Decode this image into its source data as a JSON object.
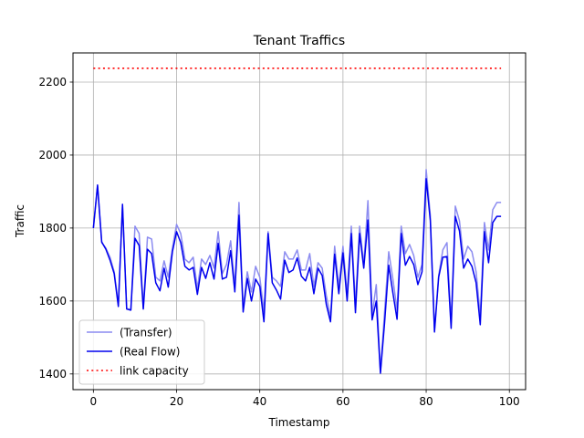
{
  "chart_data": {
    "type": "line",
    "title": "Tenant Traffics",
    "xlabel": "Timestamp",
    "ylabel": "Traffic",
    "xlim": [
      -4.9,
      103.9
    ],
    "ylim": [
      1357,
      2280
    ],
    "xticks": [
      0,
      20,
      40,
      60,
      80,
      100
    ],
    "yticks": [
      1400,
      1600,
      1800,
      2000,
      2200
    ],
    "grid": true,
    "legend_position": "lower-left",
    "series": [
      {
        "name": "(Transfer)",
        "color": "#8c8cf0",
        "style": "solid",
        "x": [
          0,
          1,
          2,
          3,
          4,
          5,
          6,
          7,
          8,
          9,
          10,
          11,
          12,
          13,
          14,
          15,
          16,
          17,
          18,
          19,
          20,
          21,
          22,
          23,
          24,
          25,
          26,
          27,
          28,
          29,
          30,
          31,
          32,
          33,
          34,
          35,
          36,
          37,
          38,
          39,
          40,
          41,
          42,
          43,
          44,
          45,
          46,
          47,
          48,
          49,
          50,
          51,
          52,
          53,
          54,
          55,
          56,
          57,
          58,
          59,
          60,
          61,
          62,
          63,
          64,
          65,
          66,
          67,
          68,
          69,
          70,
          71,
          72,
          73,
          74,
          75,
          76,
          77,
          78,
          79,
          80,
          81,
          82,
          83,
          84,
          85,
          86,
          87,
          88,
          89,
          90,
          91,
          92,
          93,
          94,
          95,
          96,
          97,
          98
        ],
        "values": [
          1800,
          1915,
          1760,
          1745,
          1720,
          1680,
          1590,
          1860,
          1580,
          1575,
          1805,
          1785,
          1580,
          1775,
          1770,
          1665,
          1655,
          1710,
          1665,
          1745,
          1810,
          1785,
          1715,
          1705,
          1720,
          1635,
          1715,
          1700,
          1725,
          1690,
          1790,
          1675,
          1700,
          1765,
          1640,
          1870,
          1580,
          1680,
          1625,
          1695,
          1665,
          1570,
          1790,
          1665,
          1655,
          1640,
          1735,
          1715,
          1715,
          1740,
          1685,
          1685,
          1730,
          1640,
          1705,
          1690,
          1615,
          1555,
          1750,
          1640,
          1750,
          1620,
          1805,
          1590,
          1805,
          1700,
          1875,
          1560,
          1645,
          1405,
          1570,
          1735,
          1660,
          1575,
          1805,
          1730,
          1755,
          1725,
          1665,
          1700,
          1960,
          1835,
          1520,
          1670,
          1740,
          1760,
          1540,
          1860,
          1820,
          1715,
          1750,
          1735,
          1680,
          1560,
          1815,
          1740,
          1850,
          1870,
          1870
        ]
      },
      {
        "name": "(Real Flow)",
        "color": "#0000ee",
        "style": "solid",
        "x": [
          0,
          1,
          2,
          3,
          4,
          5,
          6,
          7,
          8,
          9,
          10,
          11,
          12,
          13,
          14,
          15,
          16,
          17,
          18,
          19,
          20,
          21,
          22,
          23,
          24,
          25,
          26,
          27,
          28,
          29,
          30,
          31,
          32,
          33,
          34,
          35,
          36,
          37,
          38,
          39,
          40,
          41,
          42,
          43,
          44,
          45,
          46,
          47,
          48,
          49,
          50,
          51,
          52,
          53,
          54,
          55,
          56,
          57,
          58,
          59,
          60,
          61,
          62,
          63,
          64,
          65,
          66,
          67,
          68,
          69,
          70,
          71,
          72,
          73,
          74,
          75,
          76,
          77,
          78,
          79,
          80,
          81,
          82,
          83,
          84,
          85,
          86,
          87,
          88,
          89,
          90,
          91,
          92,
          93,
          94,
          95,
          96,
          97,
          98
        ],
        "values": [
          1800,
          1918,
          1762,
          1742,
          1712,
          1675,
          1585,
          1865,
          1578,
          1575,
          1772,
          1752,
          1578,
          1742,
          1730,
          1650,
          1628,
          1690,
          1638,
          1735,
          1790,
          1760,
          1695,
          1685,
          1692,
          1618,
          1692,
          1662,
          1705,
          1660,
          1758,
          1660,
          1665,
          1738,
          1625,
          1835,
          1570,
          1662,
          1600,
          1660,
          1640,
          1543,
          1785,
          1650,
          1630,
          1605,
          1712,
          1678,
          1685,
          1718,
          1668,
          1655,
          1692,
          1620,
          1690,
          1670,
          1590,
          1543,
          1728,
          1620,
          1732,
          1600,
          1785,
          1568,
          1785,
          1690,
          1822,
          1548,
          1600,
          1402,
          1540,
          1698,
          1622,
          1550,
          1785,
          1698,
          1722,
          1700,
          1645,
          1680,
          1935,
          1820,
          1515,
          1665,
          1720,
          1722,
          1525,
          1832,
          1792,
          1690,
          1715,
          1695,
          1650,
          1535,
          1790,
          1705,
          1815,
          1832,
          1832
        ]
      },
      {
        "name": "link capacity",
        "color": "#ff0000",
        "style": "dotted",
        "x": [
          0,
          98
        ],
        "values": [
          2238,
          2238
        ]
      }
    ]
  }
}
